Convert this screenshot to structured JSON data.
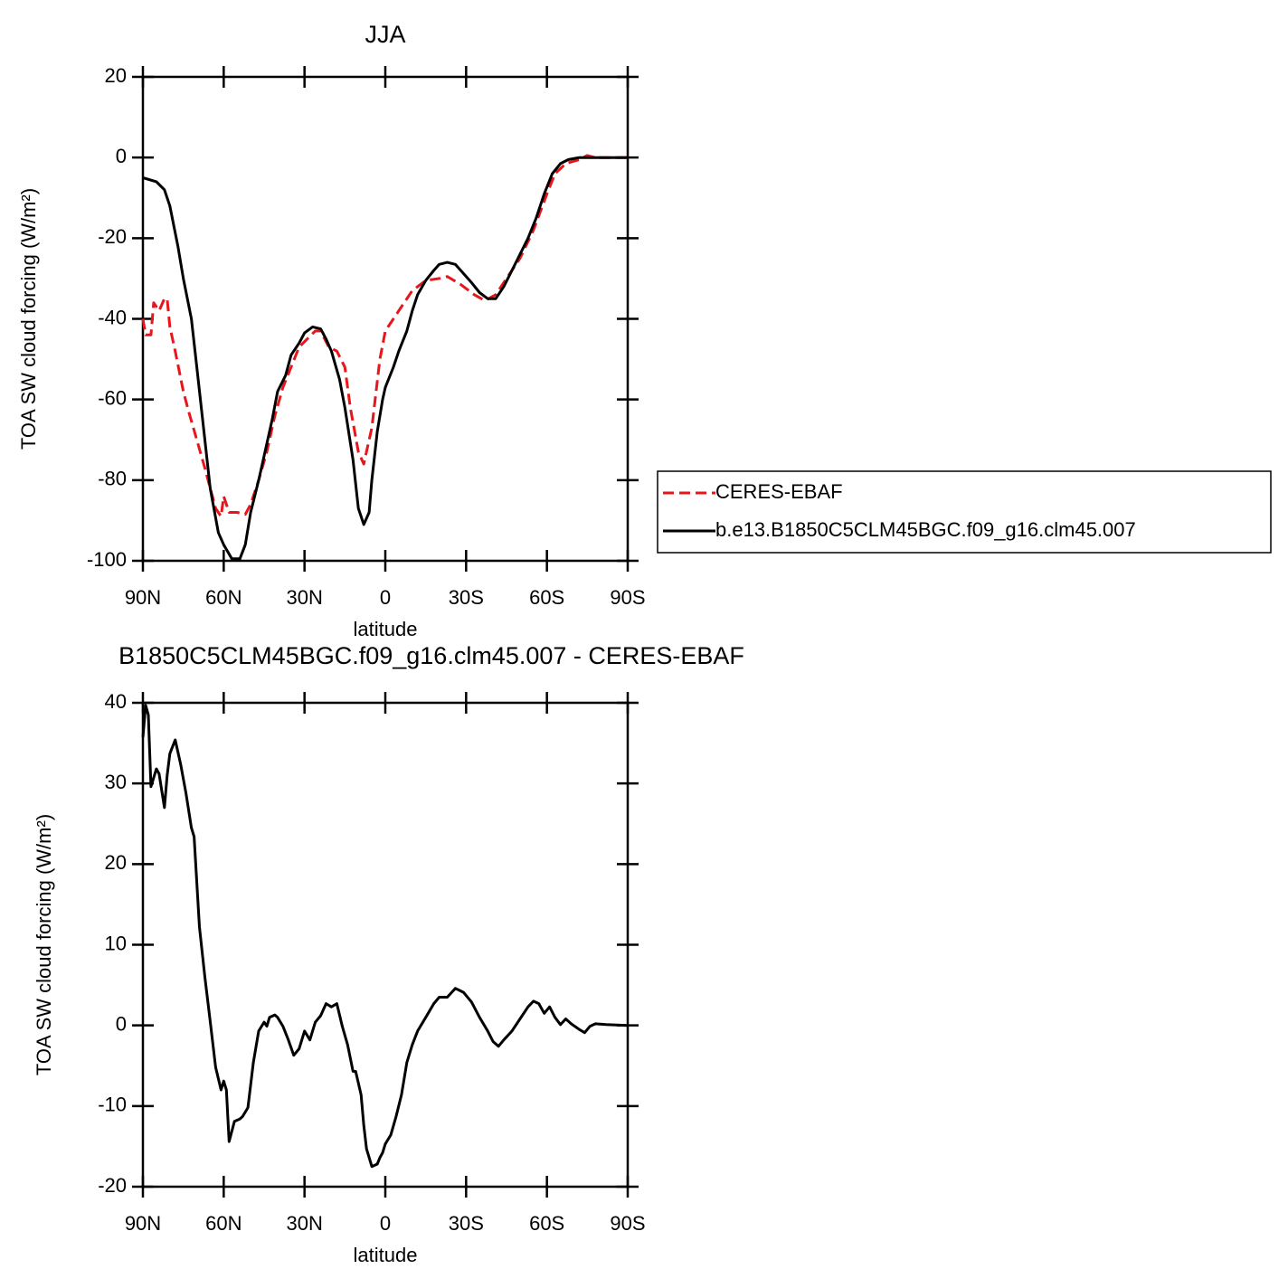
{
  "chart_data": [
    {
      "type": "line",
      "title": "JJA",
      "xlabel": "latitude",
      "ylabel": "TOA SW cloud forcing (W/m²)",
      "xlim": [
        90,
        -90
      ],
      "xticks": [
        {
          "value": 90,
          "label": "90N"
        },
        {
          "value": 60,
          "label": "60N"
        },
        {
          "value": 30,
          "label": "30N"
        },
        0,
        {
          "value": -30,
          "label": "30S"
        },
        {
          "value": -60,
          "label": "60S"
        },
        {
          "value": -90,
          "label": "90S"
        }
      ],
      "ylim": [
        -100,
        20
      ],
      "yticks": [
        -100,
        -80,
        -60,
        -40,
        -20,
        0,
        20
      ],
      "legend": "right",
      "series": [
        {
          "name": "CERES-EBAF",
          "color": "#e8161b",
          "dash": true,
          "x": [
            90,
            89,
            87,
            86,
            84,
            82,
            81,
            80,
            78,
            75,
            73,
            70,
            67,
            65,
            63,
            61,
            60,
            58,
            55,
            52,
            50,
            47,
            44,
            41,
            38,
            35,
            32,
            29,
            26,
            24,
            21,
            18,
            15,
            13,
            10,
            8,
            5,
            2,
            0,
            -5,
            -10,
            -15,
            -20,
            -23,
            -28,
            -33,
            -37,
            -41,
            -45,
            -50,
            -55,
            -60,
            -63,
            -67,
            -72,
            -75,
            -78,
            -90
          ],
          "values": [
            -40,
            -44,
            -44,
            -36,
            -38,
            -35,
            -35,
            -42,
            -48,
            -58,
            -63,
            -70,
            -77,
            -82,
            -87,
            -89,
            -84,
            -88,
            -88,
            -88.5,
            -86,
            -80,
            -73,
            -64,
            -57,
            -52,
            -47,
            -45,
            -43,
            -43,
            -47,
            -48,
            -52,
            -62,
            -73,
            -76,
            -67,
            -50,
            -43,
            -38,
            -33,
            -30.5,
            -30,
            -29.5,
            -31.5,
            -34,
            -35.5,
            -34,
            -30,
            -25,
            -18,
            -9,
            -4,
            -1.5,
            -0.5,
            0.5,
            0,
            0
          ]
        },
        {
          "name": "b.e13.B1850C5CLM45BGC.f09_g16.clm45.007",
          "color": "#000000",
          "dash": false,
          "x": [
            90,
            85,
            82,
            80,
            77,
            75,
            72,
            70,
            67,
            65,
            62,
            60,
            57,
            54,
            52,
            50,
            47,
            45,
            42,
            40,
            37,
            35,
            32,
            30,
            27,
            24,
            22,
            20,
            17,
            15,
            12,
            10,
            8,
            6,
            5,
            3,
            1,
            0,
            -3,
            -5,
            -8,
            -10,
            -12,
            -15,
            -18,
            -20,
            -23,
            -26,
            -28,
            -32,
            -35,
            -38,
            -41,
            -44,
            -47,
            -50,
            -53,
            -56,
            -59,
            -62,
            -65,
            -68,
            -72,
            -80,
            -90
          ],
          "values": [
            -5,
            -6,
            -8,
            -12,
            -22,
            -30,
            -40,
            -52,
            -70,
            -82,
            -93,
            -96,
            -99.5,
            -99.5,
            -96,
            -88,
            -80,
            -74,
            -65,
            -58,
            -54,
            -49,
            -46,
            -43.5,
            -42,
            -42.5,
            -45,
            -48,
            -55,
            -62,
            -75,
            -87,
            -91,
            -88,
            -80,
            -68,
            -60,
            -57,
            -52,
            -48,
            -43,
            -38,
            -34,
            -30.5,
            -28,
            -26.5,
            -26,
            -26.5,
            -28,
            -31,
            -33.5,
            -35,
            -35,
            -32,
            -28,
            -24,
            -20,
            -15,
            -9,
            -4,
            -1.5,
            -0.5,
            0,
            0,
            0
          ]
        }
      ]
    },
    {
      "type": "line",
      "title": "B1850C5CLM45BGC.f09_g16.clm45.007 - CERES-EBAF",
      "xlabel": "latitude",
      "ylabel": "TOA SW cloud forcing (W/m²)",
      "xlim": [
        90,
        -90
      ],
      "xticks": [
        {
          "value": 90,
          "label": "90N"
        },
        {
          "value": 60,
          "label": "60N"
        },
        {
          "value": 30,
          "label": "30N"
        },
        0,
        {
          "value": -30,
          "label": "30S"
        },
        {
          "value": -60,
          "label": "60S"
        },
        {
          "value": -90,
          "label": "90S"
        }
      ],
      "ylim": [
        -20,
        40
      ],
      "yticks": [
        -20,
        -10,
        0,
        10,
        20,
        30,
        40
      ],
      "series": [
        {
          "color": "#000000",
          "dash": false,
          "x": [
            90,
            89,
            88,
            87,
            85,
            84,
            82,
            81,
            80,
            78,
            76,
            74,
            72,
            71,
            69,
            67,
            65,
            63,
            61,
            60,
            59,
            58,
            56,
            54,
            53,
            51,
            49,
            47,
            45,
            44,
            43,
            41,
            40,
            38,
            36,
            34,
            32,
            30,
            28,
            26,
            24,
            22,
            20,
            18,
            16,
            14,
            12,
            11,
            9,
            8,
            7,
            5,
            3,
            2,
            1,
            0,
            -2,
            -4,
            -6,
            -8,
            -10,
            -12,
            -15,
            -18,
            -20,
            -23,
            -26,
            -29,
            -32,
            -35,
            -38,
            -40,
            -42,
            -44,
            -47,
            -50,
            -53,
            -55,
            -57,
            -59,
            -61,
            -63,
            -65,
            -67,
            -69,
            -72,
            -74,
            -76,
            -78,
            -82,
            -90
          ],
          "values": [
            35.7,
            39.7,
            38.5,
            29.6,
            31.8,
            31.2,
            27,
            31,
            33.7,
            35.4,
            32.4,
            28.8,
            24.5,
            23.4,
            12.2,
            6,
            0.5,
            -5.2,
            -8,
            -6.9,
            -8,
            -14.4,
            -11.9,
            -11.6,
            -11.3,
            -10.2,
            -4.6,
            -0.7,
            0.4,
            -0.1,
            1,
            1.3,
            1,
            -0.1,
            -1.8,
            -3.7,
            -2.9,
            -0.7,
            -1.8,
            0.4,
            1.2,
            2.7,
            2.3,
            2.7,
            -0.1,
            -2.4,
            -5.7,
            -5.7,
            -8.6,
            -12.4,
            -15.3,
            -17.5,
            -17.2,
            -16.4,
            -15.8,
            -14.7,
            -13.6,
            -11.3,
            -8.6,
            -4.6,
            -2.4,
            -0.7,
            1,
            2.7,
            3.5,
            3.5,
            4.6,
            4.1,
            2.9,
            1,
            -0.7,
            -2,
            -2.6,
            -1.8,
            -0.7,
            0.8,
            2.3,
            3,
            2.7,
            1.5,
            2.3,
            1,
            0.1,
            0.8,
            0.2,
            -0.5,
            -0.9,
            -0.1,
            0.2,
            0.1,
            0
          ]
        }
      ]
    }
  ]
}
